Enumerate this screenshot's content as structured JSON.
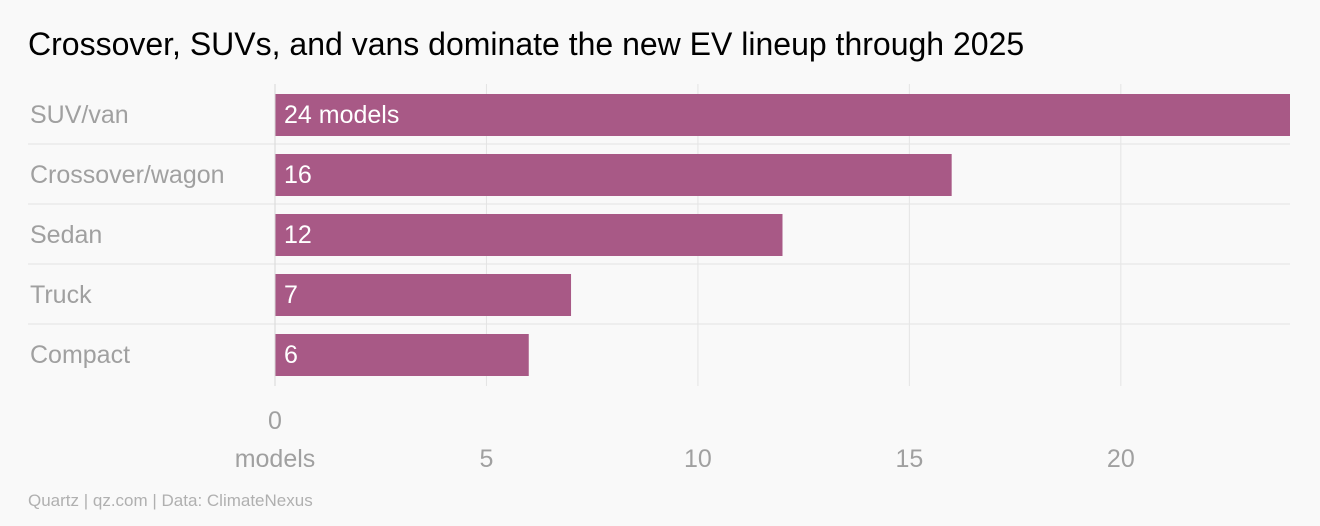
{
  "chart_data": {
    "type": "bar",
    "orientation": "horizontal",
    "title": "Crossover, SUVs, and vans dominate the new EV lineup through 2025",
    "categories": [
      "SUV/van",
      "Crossover/wagon",
      "Sedan",
      "Truck",
      "Compact"
    ],
    "values": [
      24,
      16,
      12,
      7,
      6
    ],
    "data_labels": [
      "24 models",
      "16",
      "12",
      "7",
      "6"
    ],
    "xlim": [
      0,
      24
    ],
    "x_ticks": [
      0,
      5,
      10,
      15,
      20
    ],
    "x_tick_labels": [
      "0",
      "5",
      "10",
      "15",
      "20"
    ],
    "x_unit_label": "models",
    "grid": true,
    "bar_color": "#a85986",
    "gridline_color": "#e4e4e4",
    "label_color": "#a0a0a0",
    "data_label_color": "#ffffff"
  },
  "source": "Quartz | qz.com | Data: ClimateNexus"
}
